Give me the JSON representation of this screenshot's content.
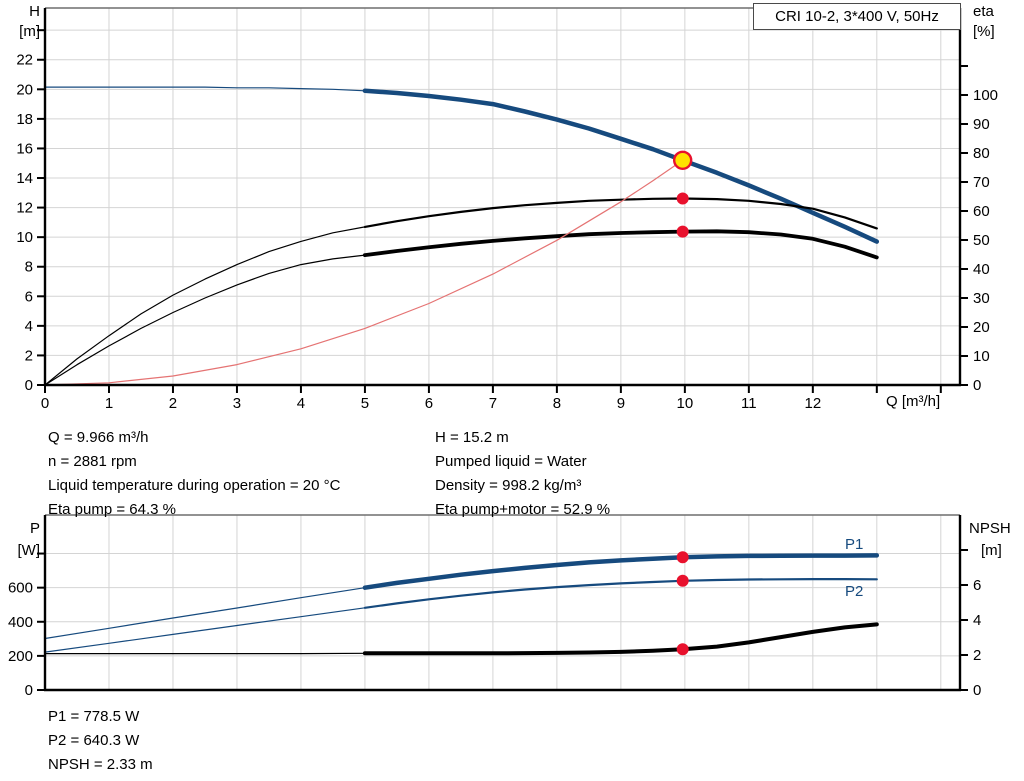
{
  "colors": {
    "curve_blue": "#164a7e",
    "curve_black": "#000000",
    "curve_red": "#e57373",
    "dot": "#e8112d",
    "duty_fill": "#ffe100",
    "duty_ring": "#e8112d",
    "grid": "#d4d4d4",
    "border_gray": "#6e6e6e"
  },
  "info_top": {
    "left": [
      "Q = 9.966 m³/h",
      "n = 2881 rpm",
      "Liquid temperature during operation = 20 °C",
      "Eta pump = 64.3 %"
    ],
    "right": [
      "H = 15.2 m",
      "Pumped liquid = Water",
      "Density = 998.2 kg/m³",
      "Eta pump+motor = 52.9 %"
    ]
  },
  "info_bottom": [
    "P1 = 778.5 W",
    "P2 = 640.3 W",
    "NPSH = 2.33 m"
  ],
  "chart_data": [
    {
      "name": "hq-chart",
      "type": "line",
      "title": "CRI 10-2, 3*400 V, 50Hz",
      "x_axis": {
        "label": "Q [m³/h]",
        "max": 14.3,
        "ticks": [
          0,
          1,
          2,
          3,
          4,
          5,
          6,
          7,
          8,
          9,
          10,
          11,
          12
        ],
        "minor": [
          13,
          14
        ],
        "grid": [
          1,
          2,
          3,
          4,
          5,
          6,
          7,
          8,
          9,
          10,
          11,
          12,
          13,
          14
        ]
      },
      "left_axis": {
        "label": "H",
        "unit": "[m]",
        "max": 25.5,
        "ticks": [
          0,
          2,
          4,
          6,
          8,
          10,
          12,
          14,
          16,
          18,
          20,
          22
        ],
        "minor": [
          24
        ],
        "grid": [
          2,
          4,
          6,
          8,
          10,
          12,
          14,
          16,
          18,
          20,
          22,
          24
        ]
      },
      "right_axis": {
        "label": "eta",
        "unit": "[%]",
        "max": 130,
        "ticks": [
          0,
          10,
          20,
          30,
          40,
          50,
          60,
          70,
          80,
          90,
          100
        ],
        "minor": [
          110
        ]
      },
      "series": [
        {
          "name": "h-q-curve",
          "axis": "left",
          "color": "#164a7e",
          "width": 4.5,
          "thin_until": 5,
          "points": [
            [
              0,
              20.15
            ],
            [
              0.5,
              20.15
            ],
            [
              1,
              20.15
            ],
            [
              1.5,
              20.15
            ],
            [
              2,
              20.15
            ],
            [
              2.5,
              20.15
            ],
            [
              3,
              20.1
            ],
            [
              3.5,
              20.1
            ],
            [
              4,
              20.05
            ],
            [
              4.5,
              20.0
            ],
            [
              5,
              19.9
            ],
            [
              5.5,
              19.75
            ],
            [
              6,
              19.55
            ],
            [
              6.5,
              19.3
            ],
            [
              7,
              19.0
            ],
            [
              7.5,
              18.5
            ],
            [
              8,
              17.95
            ],
            [
              8.5,
              17.35
            ],
            [
              9,
              16.65
            ],
            [
              9.5,
              15.95
            ],
            [
              9.966,
              15.2
            ],
            [
              10.5,
              14.35
            ],
            [
              11,
              13.5
            ],
            [
              11.5,
              12.6
            ],
            [
              12,
              11.65
            ],
            [
              12.5,
              10.7
            ],
            [
              13,
              9.7
            ]
          ]
        },
        {
          "name": "eta-pump-curve",
          "axis": "right",
          "color": "#000000",
          "width": 2.2,
          "thin_until": 5,
          "points": [
            [
              0,
              0
            ],
            [
              0.5,
              9
            ],
            [
              1,
              17
            ],
            [
              1.5,
              24.5
            ],
            [
              2,
              31
            ],
            [
              2.5,
              36.5
            ],
            [
              3,
              41.5
            ],
            [
              3.5,
              46
            ],
            [
              4,
              49.5
            ],
            [
              4.5,
              52.5
            ],
            [
              5,
              54.5
            ],
            [
              5.5,
              56.5
            ],
            [
              6,
              58.2
            ],
            [
              6.5,
              59.7
            ],
            [
              7,
              61
            ],
            [
              7.5,
              62
            ],
            [
              8,
              62.8
            ],
            [
              8.5,
              63.5
            ],
            [
              9,
              63.9
            ],
            [
              9.5,
              64.2
            ],
            [
              9.966,
              64.3
            ],
            [
              10.5,
              64.1
            ],
            [
              11,
              63.5
            ],
            [
              11.5,
              62.4
            ],
            [
              12,
              60.8
            ],
            [
              12.5,
              57.8
            ],
            [
              13,
              54
            ]
          ]
        },
        {
          "name": "eta-pump-motor-curve",
          "axis": "right",
          "color": "#000000",
          "width": 3.8,
          "thin_until": 5,
          "points": [
            [
              0,
              0
            ],
            [
              0.5,
              7
            ],
            [
              1,
              13.5
            ],
            [
              1.5,
              19.5
            ],
            [
              2,
              25
            ],
            [
              2.5,
              30
            ],
            [
              3,
              34.5
            ],
            [
              3.5,
              38.5
            ],
            [
              4,
              41.5
            ],
            [
              4.5,
              43.5
            ],
            [
              5,
              44.8
            ],
            [
              5.5,
              46.2
            ],
            [
              6,
              47.5
            ],
            [
              6.5,
              48.7
            ],
            [
              7,
              49.7
            ],
            [
              7.5,
              50.6
            ],
            [
              8,
              51.3
            ],
            [
              8.5,
              52
            ],
            [
              9,
              52.4
            ],
            [
              9.5,
              52.7
            ],
            [
              9.966,
              52.9
            ],
            [
              10.5,
              53
            ],
            [
              11,
              52.7
            ],
            [
              11.5,
              51.9
            ],
            [
              12,
              50.4
            ],
            [
              12.5,
              47.7
            ],
            [
              13,
              44
            ]
          ]
        },
        {
          "name": "affinity-parabola",
          "axis": "left",
          "color": "#e57373",
          "width": 1.2,
          "points": [
            [
              0,
              0
            ],
            [
              1,
              0.15
            ],
            [
              2,
              0.61
            ],
            [
              3,
              1.38
            ],
            [
              4,
              2.45
            ],
            [
              5,
              3.83
            ],
            [
              6,
              5.51
            ],
            [
              7,
              7.5
            ],
            [
              8,
              9.79
            ],
            [
              9,
              12.39
            ],
            [
              9.5,
              13.81
            ],
            [
              9.966,
              15.2
            ]
          ]
        }
      ],
      "markers": [
        {
          "name": "eta-pump-point",
          "q": 9.966,
          "v": 64.3,
          "axis": "right",
          "style": "dot"
        },
        {
          "name": "eta-pump-motor-point",
          "q": 9.966,
          "v": 52.9,
          "axis": "right",
          "style": "dot"
        },
        {
          "name": "duty-point-marker",
          "q": 9.966,
          "v": 15.2,
          "axis": "left",
          "style": "duty"
        }
      ]
    },
    {
      "name": "power-npsh-chart",
      "type": "line",
      "x_axis": {
        "label": "",
        "max": 14.3,
        "ticks": [],
        "minor": [],
        "grid": [
          1,
          2,
          3,
          4,
          5,
          6,
          7,
          8,
          9,
          10,
          11,
          12,
          13,
          14
        ]
      },
      "left_axis": {
        "label": "P",
        "unit": "[W]",
        "max": 1026,
        "ticks": [
          0,
          200,
          400,
          600
        ],
        "minor": [
          800
        ],
        "grid": [
          200,
          400,
          600,
          800
        ]
      },
      "right_axis": {
        "label": "NPSH",
        "unit": "[m]",
        "max": 10,
        "ticks": [
          0,
          2,
          4,
          6
        ],
        "minor": [
          8
        ]
      },
      "series": [
        {
          "name": "p1-curve",
          "label": "P1",
          "axis": "left",
          "color": "#164a7e",
          "width": 4.5,
          "thin_until": 5,
          "points": [
            [
              0,
              302
            ],
            [
              1,
              362
            ],
            [
              2,
              422
            ],
            [
              3,
              481
            ],
            [
              4,
              541
            ],
            [
              5,
              600
            ],
            [
              5.5,
              628
            ],
            [
              6,
              652
            ],
            [
              6.5,
              676
            ],
            [
              7,
              697
            ],
            [
              7.5,
              716
            ],
            [
              8,
              733
            ],
            [
              8.5,
              748
            ],
            [
              9,
              760
            ],
            [
              9.5,
              770
            ],
            [
              9.966,
              778.5
            ],
            [
              10.5,
              783
            ],
            [
              11,
              786
            ],
            [
              11.5,
              787
            ],
            [
              12,
              788
            ],
            [
              12.5,
              788
            ],
            [
              13,
              789
            ]
          ]
        },
        {
          "name": "p2-curve",
          "label": "P2",
          "axis": "left",
          "color": "#164a7e",
          "width": 2.2,
          "thin_until": 5,
          "points": [
            [
              0,
              222
            ],
            [
              1,
              274
            ],
            [
              2,
              326
            ],
            [
              3,
              378
            ],
            [
              4,
              430
            ],
            [
              5,
              482
            ],
            [
              5.5,
              508
            ],
            [
              6,
              532
            ],
            [
              6.5,
              553
            ],
            [
              7,
              572
            ],
            [
              7.5,
              589
            ],
            [
              8,
              603
            ],
            [
              8.5,
              615
            ],
            [
              9,
              625
            ],
            [
              9.5,
              633
            ],
            [
              9.966,
              640.3
            ],
            [
              10.5,
              645
            ],
            [
              11,
              648
            ],
            [
              11.5,
              649
            ],
            [
              12,
              650
            ],
            [
              12.5,
              650
            ],
            [
              13,
              649
            ]
          ]
        },
        {
          "name": "npsh-curve",
          "axis": "right",
          "color": "#000000",
          "width": 4,
          "thin_until": 5,
          "points": [
            [
              0,
              2.08
            ],
            [
              1,
              2.08
            ],
            [
              2,
              2.08
            ],
            [
              3,
              2.08
            ],
            [
              4,
              2.08
            ],
            [
              5,
              2.1
            ],
            [
              6,
              2.1
            ],
            [
              7,
              2.1
            ],
            [
              8,
              2.12
            ],
            [
              8.5,
              2.14
            ],
            [
              9,
              2.18
            ],
            [
              9.5,
              2.24
            ],
            [
              9.966,
              2.33
            ],
            [
              10.5,
              2.48
            ],
            [
              11,
              2.72
            ],
            [
              11.5,
              3.02
            ],
            [
              12,
              3.32
            ],
            [
              12.5,
              3.58
            ],
            [
              13,
              3.75
            ]
          ]
        }
      ],
      "markers": [
        {
          "name": "p1-point",
          "q": 9.966,
          "v": 778.5,
          "axis": "left",
          "style": "dot"
        },
        {
          "name": "p2-point",
          "q": 9.966,
          "v": 640.3,
          "axis": "left",
          "style": "dot"
        },
        {
          "name": "npsh-point",
          "q": 9.966,
          "v": 2.33,
          "axis": "right",
          "style": "dot"
        }
      ]
    }
  ]
}
